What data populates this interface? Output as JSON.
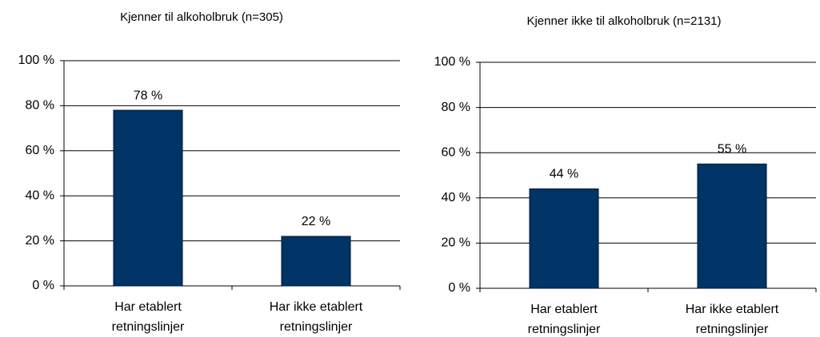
{
  "chart_data": [
    {
      "type": "bar",
      "title": "Kjenner til alkoholbruk (n=305)",
      "categories": [
        [
          "Har etablert",
          "retningslinjer"
        ],
        [
          "Har ikke etablert",
          "retningslinjer"
        ]
      ],
      "values": [
        78,
        22
      ],
      "value_labels": [
        "78 %",
        "22 %"
      ],
      "color": "#003366",
      "ylim": [
        0,
        100
      ],
      "yticks": [
        {
          "value": 0,
          "label": "0 %"
        },
        {
          "value": 20,
          "label": "20 %"
        },
        {
          "value": 40,
          "label": "40 %"
        },
        {
          "value": 60,
          "label": "60 %"
        },
        {
          "value": 80,
          "label": "80 %"
        },
        {
          "value": 100,
          "label": "100 %"
        }
      ],
      "grid": true
    },
    {
      "type": "bar",
      "title": "Kjenner ikke til alkoholbruk (n=2131)",
      "categories": [
        [
          "Har etablert",
          "retningslinjer"
        ],
        [
          "Har ikke etablert",
          "retningslinjer"
        ]
      ],
      "values": [
        44,
        55
      ],
      "value_labels": [
        "44 %",
        "55 %"
      ],
      "color": "#003366",
      "ylim": [
        0,
        100
      ],
      "yticks": [
        {
          "value": 0,
          "label": "0 %"
        },
        {
          "value": 20,
          "label": "20 %"
        },
        {
          "value": 40,
          "label": "40 %"
        },
        {
          "value": 60,
          "label": "60 %"
        },
        {
          "value": 80,
          "label": "80 %"
        },
        {
          "value": 100,
          "label": "100 %"
        }
      ],
      "grid": true
    }
  ]
}
